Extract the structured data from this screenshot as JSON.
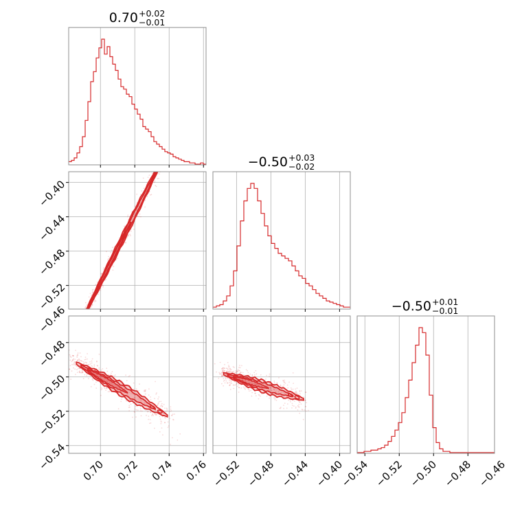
{
  "chart_data": {
    "type": "corner",
    "color": "#d62728",
    "x_ticks": {
      "p1": [
        "0.70",
        "0.72",
        "0.74",
        "0.76"
      ],
      "p2": [
        "−0.52",
        "−0.48",
        "−0.44",
        "−0.40"
      ],
      "p3": [
        "−0.54",
        "−0.52",
        "−0.50",
        "−0.48",
        "−0.46"
      ]
    },
    "y_ticks": {
      "p2": [
        "−0.40",
        "−0.44",
        "−0.48",
        "−0.52"
      ],
      "p3": [
        "−0.46",
        "−0.48",
        "−0.50",
        "−0.52",
        "−0.54"
      ]
    },
    "titles": [
      {
        "main": "0.70",
        "plus": "+0.02",
        "minus": "−0.01"
      },
      {
        "main": "−0.50",
        "plus": "+0.03",
        "minus": "−0.02"
      },
      {
        "main": "−0.50",
        "plus": "+0.01",
        "minus": "−0.01"
      }
    ],
    "ranges": {
      "p1": [
        0.6815,
        0.7615
      ],
      "p2": [
        -0.5475,
        -0.3875
      ],
      "p3": [
        -0.5445,
        -0.4645
      ]
    },
    "histograms": [
      {
        "param": "p1",
        "bin_range": [
          0.6815,
          0.7615
        ],
        "counts": [
          2,
          3,
          5,
          9,
          14,
          22,
          35,
          50,
          66,
          74,
          85,
          93,
          100,
          88,
          94,
          86,
          80,
          75,
          68,
          62,
          60,
          56,
          54,
          48,
          44,
          40,
          36,
          30,
          28,
          26,
          22,
          18,
          16,
          14,
          12,
          10,
          9,
          8,
          6,
          5,
          4,
          3,
          2,
          2,
          1,
          1,
          0,
          0,
          1,
          0
        ]
      },
      {
        "param": "p2",
        "bin_range": [
          -0.5475,
          -0.3875
        ],
        "counts": [
          1,
          2,
          3,
          6,
          10,
          18,
          30,
          50,
          70,
          86,
          96,
          100,
          96,
          86,
          76,
          66,
          58,
          52,
          48,
          44,
          42,
          40,
          38,
          34,
          30,
          26,
          24,
          20,
          18,
          15,
          12,
          10,
          8,
          6,
          5,
          4,
          3,
          2,
          1,
          1
        ]
      },
      {
        "param": "p3",
        "bin_range": [
          -0.5445,
          -0.4645
        ],
        "counts": [
          0,
          0,
          1,
          1,
          2,
          2,
          3,
          4,
          6,
          9,
          13,
          18,
          24,
          32,
          44,
          58,
          72,
          86,
          100,
          96,
          78,
          46,
          20,
          8,
          3,
          1,
          1,
          0,
          0,
          0,
          0,
          0,
          0,
          0,
          0,
          0,
          0,
          0,
          0,
          0
        ]
      }
    ],
    "contours": [
      {
        "panel": "p2_vs_p1",
        "x": "p1",
        "y": "p2",
        "center": [
          0.705,
          -0.497
        ],
        "slope": 4.0,
        "extent_along": [
          0.688,
          0.742
        ],
        "width": 0.004,
        "scatter": "light"
      },
      {
        "panel": "p3_vs_p1",
        "x": "p1",
        "y": "p3",
        "center": [
          0.705,
          -0.503
        ],
        "slope": -0.58,
        "extent_along": [
          0.686,
          0.74
        ],
        "width": 0.0025,
        "scatter": "light"
      },
      {
        "panel": "p3_vs_p2",
        "x": "p2",
        "y": "p3",
        "center": [
          -0.505,
          -0.503
        ],
        "slope": -0.16,
        "extent_along": [
          -0.535,
          -0.44
        ],
        "width": 0.0022,
        "scatter": "light"
      }
    ],
    "grid": true
  }
}
